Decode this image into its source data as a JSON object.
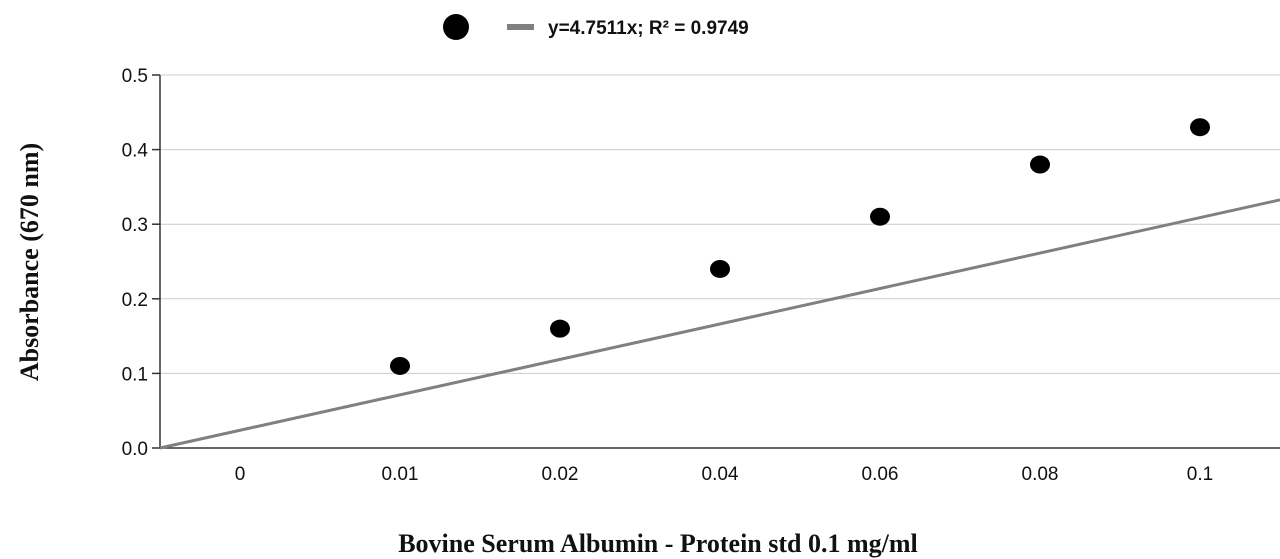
{
  "chart_data": {
    "type": "scatter",
    "xlabel": "Bovine Serum Albumin - Protein std 0.1 mg/ml",
    "ylabel": "Absorbance (670 nm)",
    "categories": [
      "0",
      "0.01",
      "0.02",
      "0.04",
      "0.06",
      "0.08",
      "0.1"
    ],
    "y_ticks": [
      "0.0",
      "0.1",
      "0.2",
      "0.3",
      "0.4",
      "0.5"
    ],
    "ylim": [
      0,
      0.5
    ],
    "grid": "horizontal",
    "legend_position": "top",
    "series": [
      {
        "values": [
          null,
          0.11,
          0.16,
          0.24,
          0.31,
          0.38,
          0.43
        ],
        "color": "#000000",
        "marker": "circle"
      }
    ],
    "trendline": {
      "label": "y=4.7511x; R² = 0.9749",
      "slope": 4.7511,
      "r_squared": 0.9749,
      "color": "#808080"
    }
  }
}
